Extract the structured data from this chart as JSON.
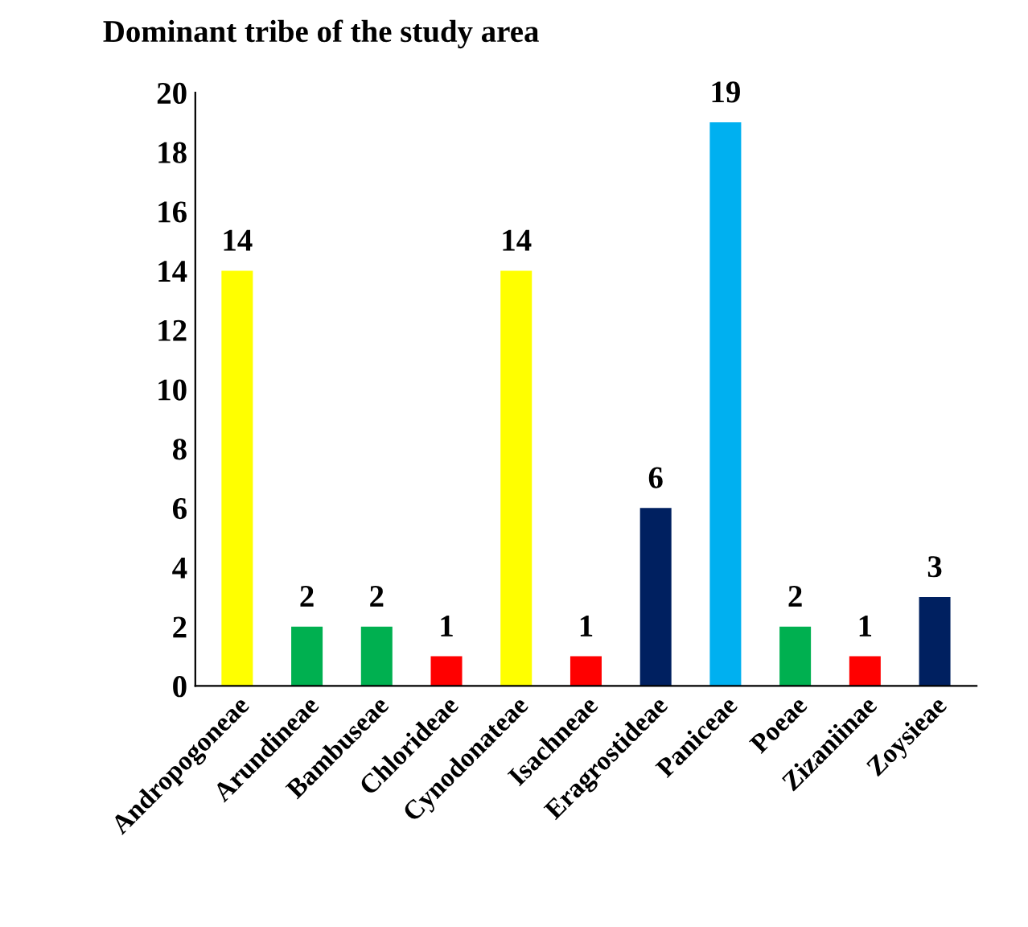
{
  "chart_data": {
    "type": "bar",
    "title": "Dominant tribe of the study area",
    "categories": [
      "Andropogoneae",
      "Arundineae",
      "Bambuseae",
      "Chlorideae",
      "Cynodonateae",
      "Isachneae",
      "Eragrostideae",
      "Paniceae",
      "Poeae",
      "Zizaniinae",
      "Zoysieae"
    ],
    "values": [
      14,
      2,
      2,
      1,
      14,
      1,
      6,
      19,
      2,
      1,
      3
    ],
    "colors": [
      "#ffff00",
      "#00b050",
      "#00b050",
      "#ff0000",
      "#ffff00",
      "#ff0000",
      "#002060",
      "#00b0f0",
      "#00b050",
      "#ff0000",
      "#002060"
    ],
    "ylim": [
      0,
      20
    ],
    "yticks": [
      0,
      2,
      4,
      6,
      8,
      10,
      12,
      14,
      16,
      18,
      20
    ],
    "data_labels": true,
    "grid": false,
    "legend": false
  }
}
